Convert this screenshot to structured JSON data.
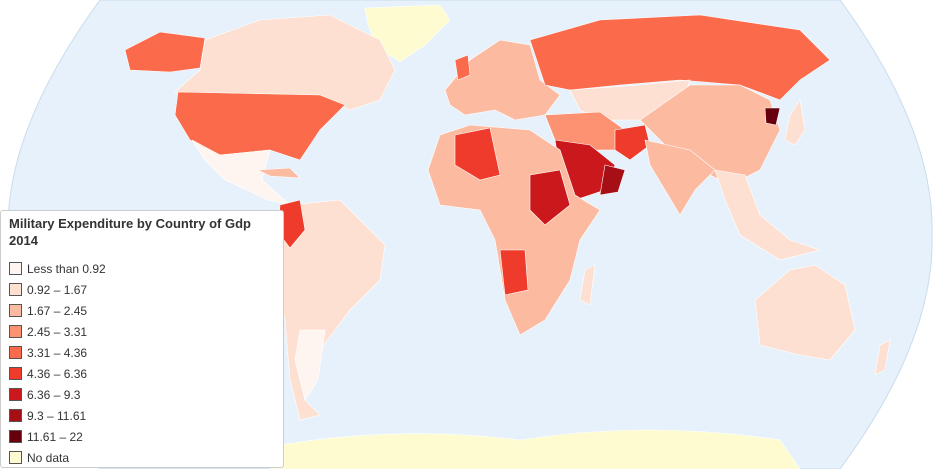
{
  "legend": {
    "title": "Military Expenditure by Country of Gdp 2014",
    "items": [
      {
        "label": "Less than 0.92",
        "color": "#fff5f0"
      },
      {
        "label": "0.92 – 1.67",
        "color": "#fee0d2"
      },
      {
        "label": "1.67 – 2.45",
        "color": "#fcbba1"
      },
      {
        "label": "2.45 – 3.31",
        "color": "#fc9272"
      },
      {
        "label": "3.31 – 4.36",
        "color": "#fb6a4a"
      },
      {
        "label": "4.36 – 6.36",
        "color": "#ef3b2c"
      },
      {
        "label": "6.36 – 9.3",
        "color": "#cb181d"
      },
      {
        "label": "9.3 – 11.61",
        "color": "#a50f15"
      },
      {
        "label": "11.61 – 22",
        "color": "#67000d"
      },
      {
        "label": "No data",
        "color": "#fdfbcf"
      }
    ]
  }
}
